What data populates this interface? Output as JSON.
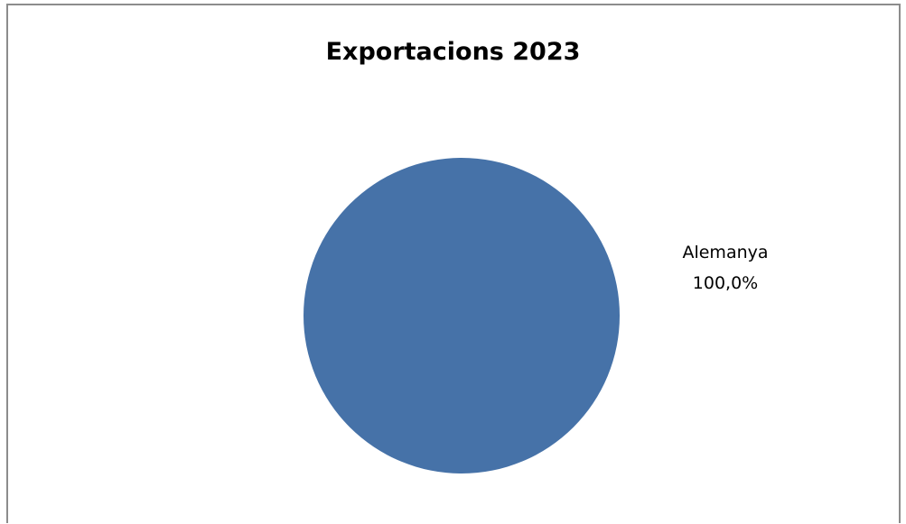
{
  "chart_data": {
    "type": "pie",
    "title": "Exportacions 2023",
    "slices": [
      {
        "label": "Alemanya",
        "value": 100.0,
        "percent_label": "100,0%",
        "color": "#4672a8"
      }
    ],
    "legend": "none",
    "data_labels": "outside-right"
  }
}
